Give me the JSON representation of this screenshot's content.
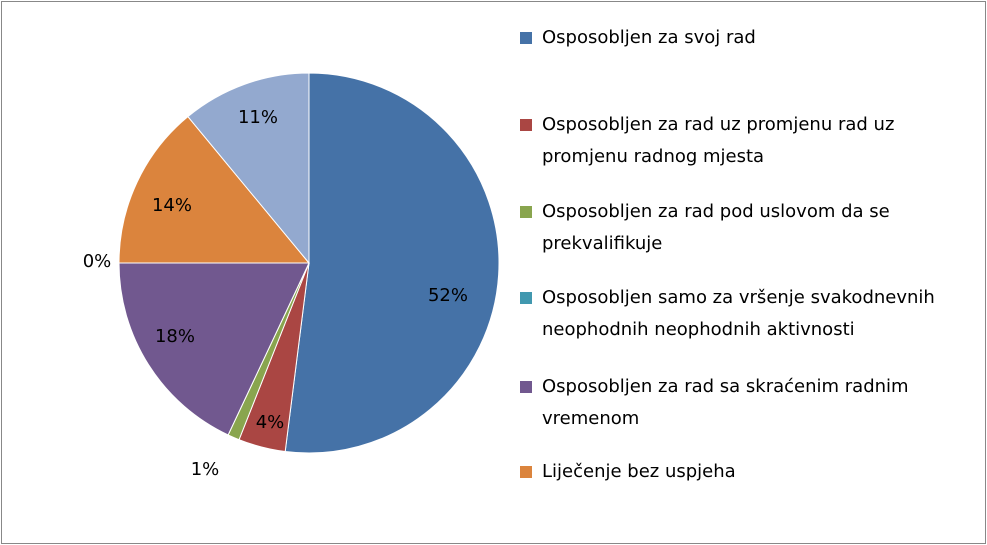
{
  "chart_data": {
    "type": "pie",
    "categories": [
      "Osposobljen  za svoj rad",
      "Osposobljen za rad uz promjenu rad uz promjenu radnog mjesta",
      "Osposobljen za rad pod uslovom da se prekvalifikuje",
      "Osposobljen samo za vršenje svakodnevnih neophodnih neophodnih aktivnosti",
      "Osposobljen za rad sa skraćenim radnim vremenom",
      "Liječenje bez uspjeha",
      null
    ],
    "values": [
      52,
      4,
      1,
      0,
      18,
      14,
      11
    ],
    "value_labels": [
      "52%",
      "4%",
      "1%",
      "0%",
      "18%",
      "14%",
      "11%"
    ],
    "colors": [
      "#4572a7",
      "#aa4643",
      "#89a54e",
      "#4198af",
      "#71588f",
      "#db843d",
      "#93a9cf"
    ]
  }
}
